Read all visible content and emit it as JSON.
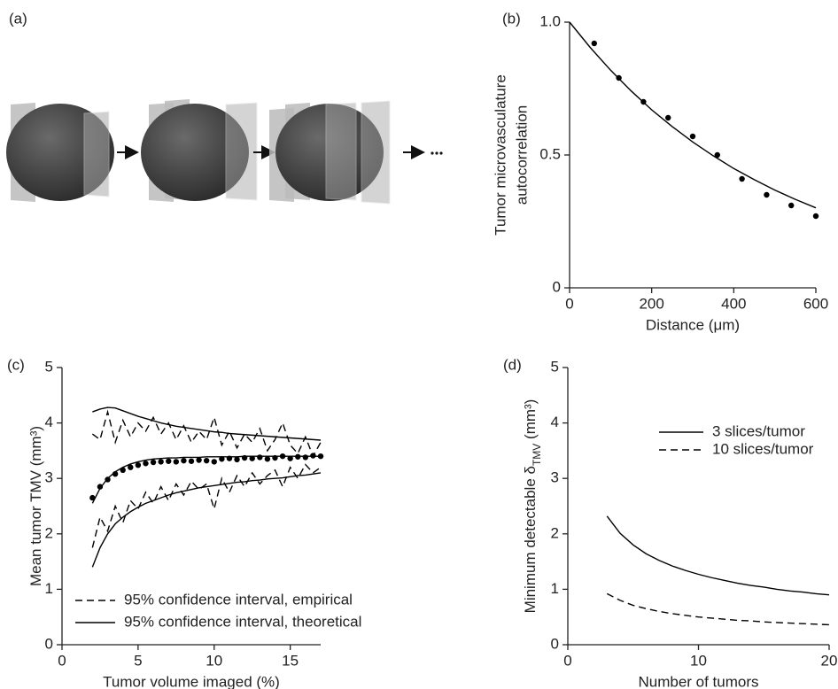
{
  "panel_a": {
    "label": "(a)"
  },
  "chart_data": [
    {
      "type": "scatter",
      "panel_label": "(b)",
      "x_label": "Distance (μm)",
      "y_label": [
        "Tumor microvasculature",
        "autocorrelation"
      ],
      "xlim": [
        0,
        600
      ],
      "ylim": [
        0,
        1
      ],
      "xticks": [
        0,
        200,
        400,
        600
      ],
      "yticks": [
        0,
        0.5,
        {
          "value": 1,
          "label": "1.0"
        }
      ],
      "color": "#000000",
      "series": [
        {
          "marker": "dot",
          "x": [
            60,
            120,
            180,
            240,
            300,
            360,
            420,
            480,
            540,
            600
          ],
          "values": [
            0.92,
            0.79,
            0.7,
            0.64,
            0.57,
            0.5,
            0.41,
            0.35,
            0.31,
            0.27
          ]
        },
        {
          "x": [
            0,
            50,
            100,
            150,
            200,
            250,
            300,
            350,
            400,
            450,
            500,
            550,
            600
          ],
          "values": [
            1.0,
            0.905,
            0.819,
            0.741,
            0.67,
            0.607,
            0.549,
            0.497,
            0.449,
            0.407,
            0.368,
            0.333,
            0.301
          ]
        }
      ]
    },
    {
      "type": "line",
      "panel_label": "(c)",
      "x_label": "Tumor volume imaged (%)",
      "y_label": {
        "text": "Mean tumor TMV (mm³)"
      },
      "xlim": [
        0,
        17
      ],
      "ylim": [
        0,
        5
      ],
      "xticks": [
        0,
        5,
        10,
        15
      ],
      "yticks": [
        0,
        1,
        2,
        3,
        4,
        5
      ],
      "legend": "lower left",
      "color": "#000000",
      "x": [
        2,
        2.5,
        3,
        3.5,
        4,
        4.5,
        5,
        5.5,
        6,
        6.5,
        7,
        7.5,
        8,
        8.5,
        9,
        9.5,
        10,
        10.5,
        11,
        11.5,
        12,
        12.5,
        13,
        13.5,
        14,
        14.5,
        15,
        15.5,
        16,
        16.5,
        17
      ],
      "series": [
        {
          "name": "95% confidence interval, empirical",
          "dash": true,
          "values": [
            3.8,
            3.7,
            4.2,
            3.65,
            4.05,
            3.75,
            4.0,
            3.85,
            4.1,
            3.8,
            4.0,
            3.7,
            3.95,
            3.65,
            3.85,
            3.7,
            4.1,
            3.6,
            3.85,
            3.55,
            3.8,
            3.65,
            3.9,
            3.5,
            3.7,
            4.0,
            3.6,
            3.45,
            3.75,
            3.4,
            3.65
          ]
        },
        {
          "dash": true,
          "values": [
            1.75,
            2.3,
            2.05,
            2.5,
            2.2,
            2.6,
            2.45,
            2.75,
            2.55,
            2.85,
            2.6,
            2.9,
            2.7,
            2.95,
            2.8,
            2.9,
            2.45,
            3.0,
            2.75,
            3.05,
            2.85,
            3.1,
            2.9,
            3.05,
            3.15,
            2.85,
            3.2,
            3.0,
            3.25,
            3.1,
            3.2
          ]
        },
        {
          "name": "95% confidence interval, theoretical",
          "values": [
            4.2,
            4.25,
            4.28,
            4.27,
            4.22,
            4.17,
            4.12,
            4.08,
            4.04,
            4.0,
            3.97,
            3.94,
            3.92,
            3.9,
            3.88,
            3.86,
            3.84,
            3.83,
            3.81,
            3.8,
            3.79,
            3.78,
            3.77,
            3.76,
            3.75,
            3.74,
            3.73,
            3.72,
            3.71,
            3.7,
            3.69
          ]
        },
        {
          "values": [
            2.55,
            2.82,
            3.0,
            3.12,
            3.2,
            3.26,
            3.3,
            3.33,
            3.35,
            3.36,
            3.37,
            3.37,
            3.38,
            3.38,
            3.38,
            3.39,
            3.39,
            3.39,
            3.39,
            3.39,
            3.4,
            3.4,
            3.4,
            3.4,
            3.4,
            3.4,
            3.4,
            3.4,
            3.4,
            3.4,
            3.4
          ]
        },
        {
          "values": [
            1.4,
            1.75,
            2.0,
            2.18,
            2.3,
            2.4,
            2.48,
            2.55,
            2.6,
            2.65,
            2.7,
            2.74,
            2.77,
            2.8,
            2.83,
            2.85,
            2.87,
            2.89,
            2.91,
            2.93,
            2.94,
            2.96,
            2.97,
            2.99,
            3.0,
            3.01,
            3.03,
            3.05,
            3.06,
            3.08,
            3.1
          ]
        },
        {
          "marker": "dot",
          "values": [
            2.65,
            2.85,
            2.98,
            3.08,
            3.15,
            3.2,
            3.24,
            3.27,
            3.29,
            3.3,
            3.31,
            3.3,
            3.32,
            3.31,
            3.33,
            3.32,
            3.3,
            3.35,
            3.36,
            3.34,
            3.37,
            3.36,
            3.38,
            3.35,
            3.37,
            3.4,
            3.36,
            3.39,
            3.38,
            3.41,
            3.4
          ]
        }
      ]
    },
    {
      "type": "line",
      "panel_label": "(d)",
      "x_label": "Number of tumors",
      "y_label": {
        "text": "Minimum detectable δ",
        "sub": "TMV",
        "end": " (mm³)"
      },
      "xlim": [
        0,
        20
      ],
      "ylim": [
        0,
        5
      ],
      "xticks": [
        0,
        10,
        20
      ],
      "yticks": [
        0,
        1,
        2,
        3,
        4,
        5
      ],
      "legend": "upper right",
      "color": "#000000",
      "x": [
        3,
        4,
        5,
        6,
        7,
        8,
        9,
        10,
        11,
        12,
        13,
        14,
        15,
        16,
        17,
        18,
        19,
        20
      ],
      "series": [
        {
          "name": "3 slices/tumor",
          "values": [
            2.32,
            2.01,
            1.8,
            1.64,
            1.52,
            1.42,
            1.34,
            1.27,
            1.21,
            1.16,
            1.11,
            1.07,
            1.04,
            1.0,
            0.97,
            0.95,
            0.92,
            0.9
          ]
        },
        {
          "name": "10 slices/tumor",
          "dash": true,
          "values": [
            0.92,
            0.8,
            0.71,
            0.65,
            0.6,
            0.56,
            0.53,
            0.5,
            0.48,
            0.46,
            0.44,
            0.43,
            0.41,
            0.4,
            0.39,
            0.38,
            0.37,
            0.36
          ]
        }
      ]
    }
  ]
}
